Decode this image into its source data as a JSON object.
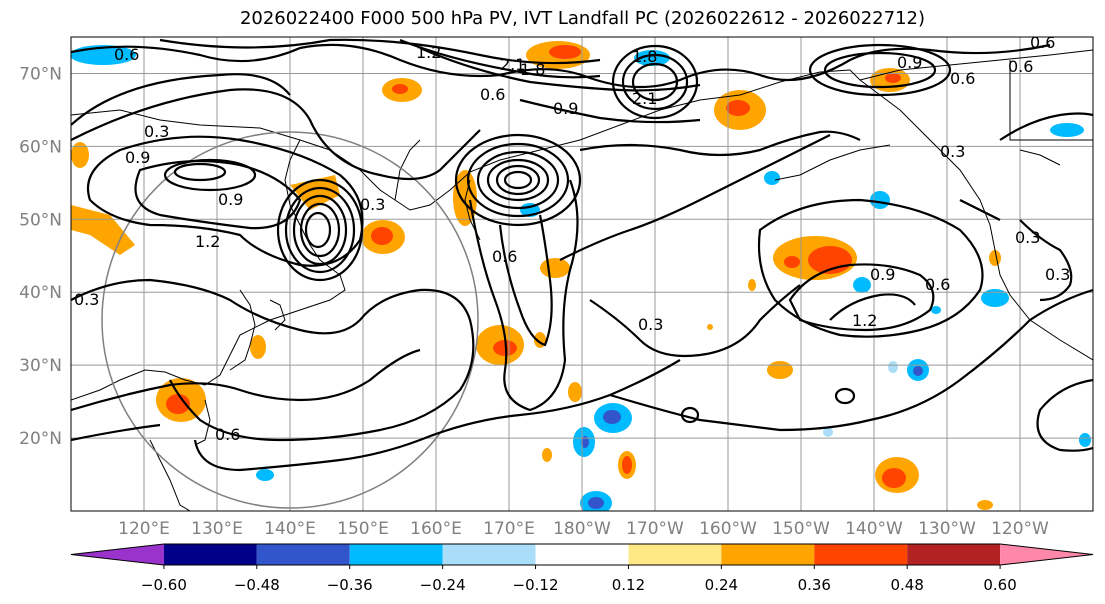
{
  "title": "2026022400 F000 500 hPa PV, IVT Landfall PC (2026022612 - 2026022712)",
  "lat_labels": [
    {
      "lat": 70,
      "text": "70°N"
    },
    {
      "lat": 60,
      "text": "60°N"
    },
    {
      "lat": 50,
      "text": "50°N"
    },
    {
      "lat": 40,
      "text": "40°N"
    },
    {
      "lat": 30,
      "text": "30°N"
    },
    {
      "lat": 20,
      "text": "20°N"
    }
  ],
  "lon_labels": [
    {
      "lon": 120,
      "text": "120°E"
    },
    {
      "lon": 130,
      "text": "130°E"
    },
    {
      "lon": 140,
      "text": "140°E"
    },
    {
      "lon": 150,
      "text": "150°E"
    },
    {
      "lon": 160,
      "text": "160°E"
    },
    {
      "lon": 170,
      "text": "170°E"
    },
    {
      "lon": 180,
      "text": "180°W"
    },
    {
      "lon": 190,
      "text": "170°W"
    },
    {
      "lon": 200,
      "text": "160°W"
    },
    {
      "lon": 210,
      "text": "150°W"
    },
    {
      "lon": 220,
      "text": "140°W"
    },
    {
      "lon": 230,
      "text": "130°W"
    },
    {
      "lon": 240,
      "text": "120°W"
    }
  ],
  "colorbar": {
    "colors": [
      "#9933cc",
      "#000088",
      "#3355cc",
      "#00bbff",
      "#aaddf7",
      "#ffffff",
      "#ffe987",
      "#ffa500",
      "#ff4400",
      "#b22222",
      "#ff88aa"
    ],
    "ticks": [
      "−0.60",
      "−0.48",
      "−0.36",
      "−0.24",
      "−0.12",
      "0.12",
      "0.24",
      "0.36",
      "0.48",
      "0.60"
    ]
  },
  "contour_labels": [
    "0.6",
    "1.2",
    "1.8",
    "2.1",
    "1.8",
    "0.6",
    "0.9",
    "2.1",
    "0.9",
    "0.6",
    "0.3",
    "0.9",
    "1.2",
    "0.9",
    "0.3",
    "0.6",
    "0.3",
    "0.3",
    "0.9",
    "1.2",
    "0.6",
    "0.3",
    "0.6",
    "0.6",
    "0.6",
    "0.3",
    "0.3"
  ]
}
